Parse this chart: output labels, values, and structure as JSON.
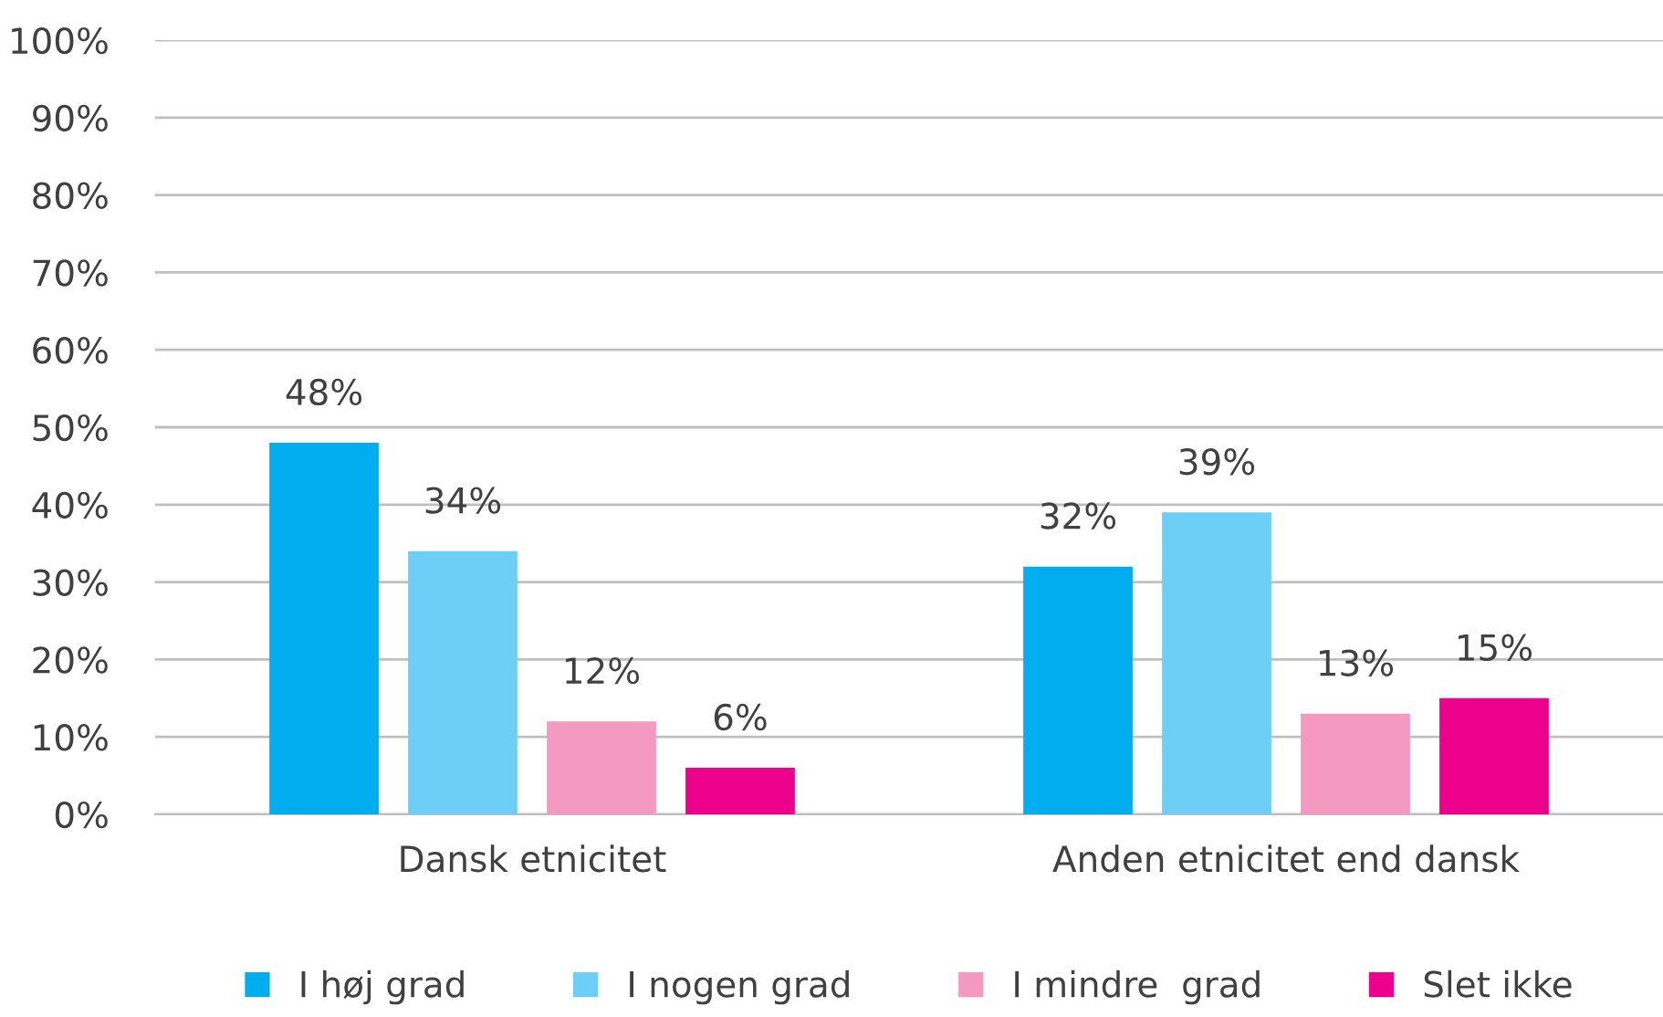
{
  "chart_data": {
    "type": "bar",
    "categories": [
      "Dansk etnicitet",
      "Anden etnicitet end dansk"
    ],
    "series": [
      {
        "name": "I høj grad",
        "color": "#00aeef",
        "values": [
          48,
          32
        ],
        "value_labels": [
          "48%",
          "32%"
        ]
      },
      {
        "name": "I nogen grad",
        "color": "#6dcff6",
        "values": [
          34,
          39
        ],
        "value_labels": [
          "34%",
          "39%"
        ]
      },
      {
        "name": "I mindre  grad",
        "color": "#f49ac1",
        "values": [
          12,
          13
        ],
        "value_labels": [
          "12%",
          "13%"
        ]
      },
      {
        "name": "Slet ikke",
        "color": "#ec008c",
        "values": [
          6,
          15
        ],
        "value_labels": [
          "6%",
          "15%"
        ]
      }
    ],
    "ylim": [
      0,
      100
    ],
    "yticks": [
      {
        "value": 0,
        "label": "0%"
      },
      {
        "value": 10,
        "label": "10%"
      },
      {
        "value": 20,
        "label": "20%"
      },
      {
        "value": 30,
        "label": "30%"
      },
      {
        "value": 40,
        "label": "40%"
      },
      {
        "value": 50,
        "label": "50%"
      },
      {
        "value": 60,
        "label": "60%"
      },
      {
        "value": 70,
        "label": "70%"
      },
      {
        "value": 80,
        "label": "80%"
      },
      {
        "value": 90,
        "label": "90%"
      },
      {
        "value": 100,
        "label": "100%"
      }
    ],
    "grid": "y",
    "legend": "bottom"
  }
}
